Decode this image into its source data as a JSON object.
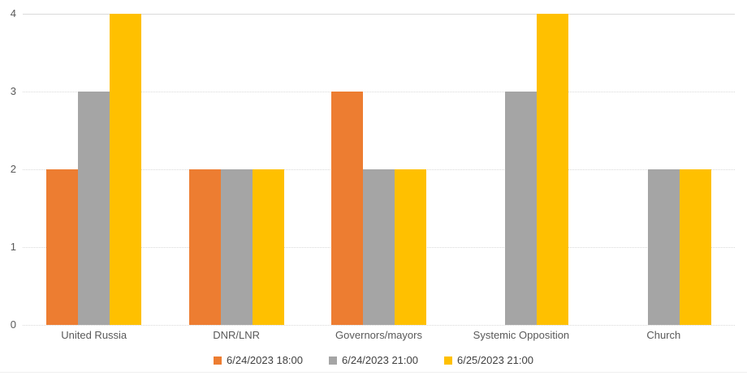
{
  "chart_data": {
    "type": "bar",
    "title": "",
    "xlabel": "",
    "ylabel": "",
    "categories": [
      "United Russia",
      "DNR/LNR",
      "Governors/mayors",
      "Systemic Opposition",
      "Church"
    ],
    "series": [
      {
        "name": "6/24/2023 18:00",
        "color": "#ED7D31",
        "values": [
          2,
          2,
          3,
          0,
          0
        ]
      },
      {
        "name": "6/24/2023 21:00",
        "color": "#A5A5A5",
        "values": [
          3,
          2,
          2,
          3,
          2
        ]
      },
      {
        "name": "6/25/2023 21:00",
        "color": "#FFC000",
        "values": [
          4,
          2,
          2,
          4,
          2
        ]
      }
    ],
    "y_ticks": [
      "0",
      "1",
      "2",
      "3",
      "4"
    ],
    "ylim": [
      0,
      4
    ],
    "grid": true,
    "gridline_style": "dotted-except-top",
    "legend_position": "bottom",
    "colors": {
      "gridline": "#D9D9D9",
      "axis_text": "#595959",
      "legend_text": "#404040",
      "background": "#FFFFFF"
    }
  }
}
